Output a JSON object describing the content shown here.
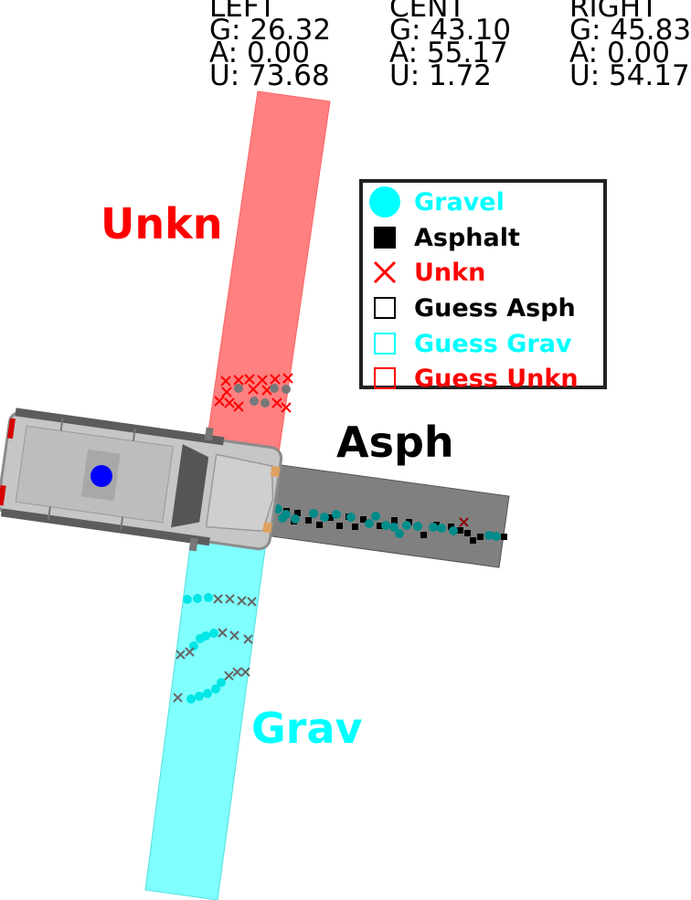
{
  "stats": [
    {
      "title": "LEFT",
      "g": "G: 26.32",
      "a": "A: 0.00",
      "u": "U: 73.68"
    },
    {
      "title": "CENT",
      "g": "G: 43.10",
      "a": "A: 55.17",
      "u": "U: 1.72"
    },
    {
      "title": "RIGHT",
      "g": "G: 45.83",
      "a": "A: 0.00",
      "u": "U: 54.17"
    }
  ],
  "regions": {
    "left": {
      "label": "Unkn",
      "color": "#ff0000",
      "fill": "#ff8080"
    },
    "center": {
      "label": "Asph",
      "color": "#000000",
      "fill": "#808080"
    },
    "right": {
      "label": "Grav",
      "color": "#00ffff",
      "fill": "#80ffff"
    }
  },
  "legend": [
    {
      "label": "Gravel",
      "color": "#00ffff",
      "marker": "filled-circle"
    },
    {
      "label": "Asphalt",
      "color": "#000000",
      "marker": "filled-square"
    },
    {
      "label": "Unkn",
      "color": "#ff0000",
      "marker": "x"
    },
    {
      "label": "Guess Asph",
      "color": "#000000",
      "marker": "hollow-square"
    },
    {
      "label": "Guess Grav",
      "color": "#00ffff",
      "marker": "hollow-square"
    },
    {
      "label": "Guess Unkn",
      "color": "#ff0000",
      "marker": "hollow-square"
    }
  ],
  "icons": {
    "vehicle": "suv-top-view-icon",
    "sensor": "blue-dot-icon"
  }
}
